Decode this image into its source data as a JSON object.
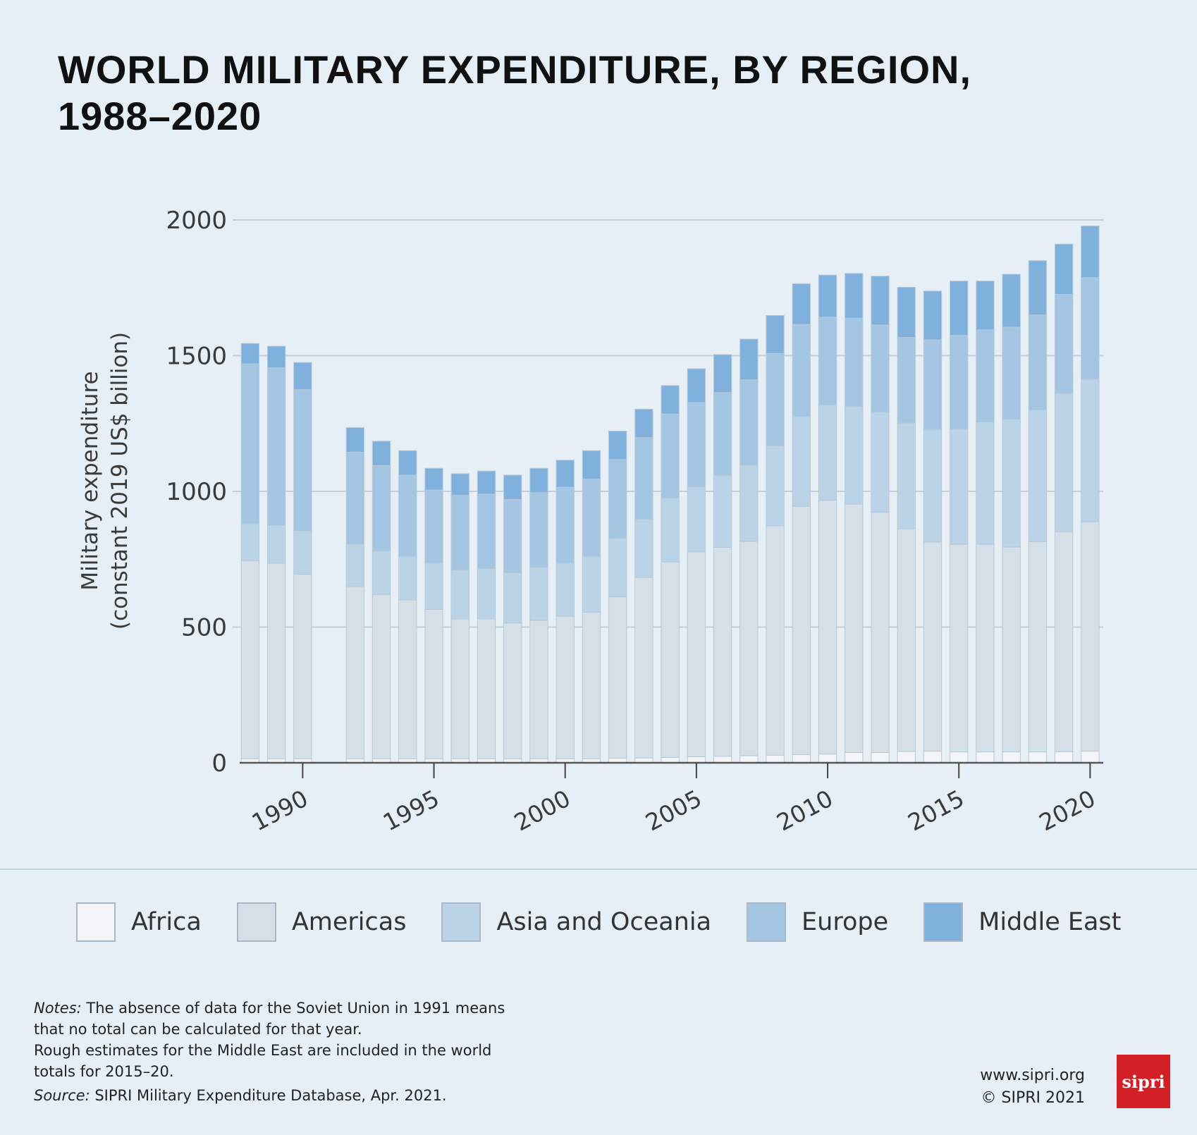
{
  "title_line1": "WORLD MILITARY EXPENDITURE, BY REGION,",
  "title_line2": "1988–2020",
  "chart_data": {
    "type": "bar",
    "stacked": true,
    "title": "WORLD MILITARY EXPENDITURE, BY REGION, 1988–2020",
    "ylabel_line1": "Military expenditure",
    "ylabel_line2": "(constant 2019 US$ billion)",
    "xlabel": "",
    "ylim": [
      0,
      2000
    ],
    "yticks": [
      0,
      500,
      1000,
      1500,
      2000
    ],
    "ytick_labels": [
      "0",
      "500",
      "1000",
      "1500",
      "2000"
    ],
    "xticks": [
      1990,
      1995,
      2000,
      2005,
      2010,
      2015,
      2020
    ],
    "xtick_labels": [
      "1990",
      "1995",
      "2000",
      "2005",
      "2010",
      "2015",
      "2020"
    ],
    "grid": true,
    "legend_position": "bottom",
    "x": [
      1988,
      1989,
      1990,
      1992,
      1993,
      1994,
      1995,
      1996,
      1997,
      1998,
      1999,
      2000,
      2001,
      2002,
      2003,
      2004,
      2005,
      2006,
      2007,
      2008,
      2009,
      2010,
      2011,
      2012,
      2013,
      2014,
      2015,
      2016,
      2017,
      2018,
      2019,
      2020
    ],
    "series": [
      {
        "name": "Africa",
        "color": "#f3f5f8",
        "values": [
          15,
          15,
          15,
          15,
          15,
          15,
          15,
          15,
          15,
          15,
          15,
          15,
          15,
          17,
          18,
          20,
          22,
          24,
          26,
          28,
          30,
          32,
          38,
          38,
          42,
          43,
          40,
          40,
          40,
          40,
          41,
          43
        ]
      },
      {
        "name": "Americas",
        "color": "#d5dfe7",
        "values": [
          730,
          720,
          680,
          635,
          605,
          585,
          550,
          515,
          515,
          500,
          510,
          525,
          540,
          595,
          665,
          720,
          755,
          770,
          790,
          845,
          915,
          935,
          915,
          885,
          820,
          770,
          765,
          765,
          755,
          775,
          810,
          845
        ]
      },
      {
        "name": "Asia and Oceania",
        "color": "#bbd3e6",
        "values": [
          135,
          140,
          160,
          155,
          160,
          160,
          170,
          180,
          185,
          185,
          195,
          195,
          205,
          215,
          215,
          235,
          240,
          265,
          280,
          295,
          330,
          350,
          360,
          370,
          390,
          415,
          425,
          450,
          470,
          485,
          510,
          525
        ]
      },
      {
        "name": "Europe",
        "color": "#a4c6e3",
        "values": [
          590,
          580,
          520,
          340,
          315,
          300,
          270,
          275,
          275,
          270,
          275,
          280,
          285,
          290,
          300,
          310,
          310,
          305,
          315,
          340,
          340,
          325,
          325,
          320,
          315,
          330,
          345,
          340,
          340,
          350,
          365,
          375
        ]
      },
      {
        "name": "Middle East",
        "color": "#80b1dc",
        "values": [
          75,
          80,
          100,
          90,
          90,
          90,
          80,
          80,
          85,
          90,
          90,
          100,
          105,
          105,
          105,
          105,
          125,
          140,
          150,
          140,
          150,
          155,
          165,
          180,
          185,
          180,
          200,
          180,
          195,
          200,
          185,
          190
        ]
      }
    ]
  },
  "notes": {
    "notes_label": "Notes:",
    "line1": " The absence of data for the Soviet Union in 1991 means",
    "line2": "that no total can be calculated for that year.",
    "line3": "Rough estimates for the Middle East are included in the world",
    "line4": "totals for 2015–20.",
    "source_label": "Source:",
    "source_text": " SIPRI Military Expenditure Database, Apr. 2021."
  },
  "credits": {
    "website": "www.sipri.org",
    "copyright": "© SIPRI 2021"
  },
  "logo_text": "sipri"
}
